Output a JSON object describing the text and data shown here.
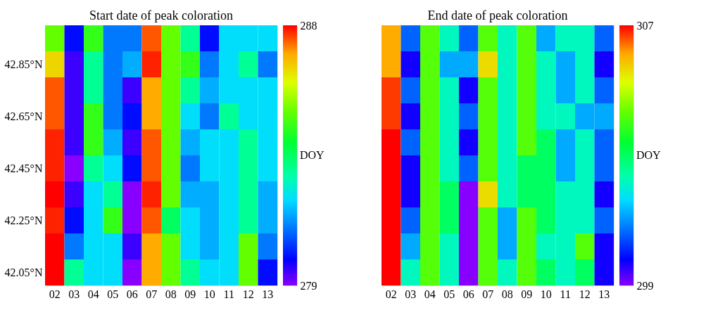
{
  "chart_data": [
    {
      "type": "heatmap",
      "title": "Start date of peak coloration",
      "clabel": "DOY",
      "categories": [
        "02",
        "03",
        "04",
        "05",
        "06",
        "07",
        "08",
        "09",
        "10",
        "11",
        "12",
        "13"
      ],
      "y_categories": [
        null,
        "42.85°N",
        null,
        "42.65°N",
        null,
        "42.45°N",
        null,
        "42.25°N",
        null,
        "42.05°N"
      ],
      "cells": [
        [
          285,
          280,
          284.5,
          281,
          281,
          287.5,
          285,
          283,
          280,
          282,
          282,
          282
        ],
        [
          286.5,
          279.5,
          283,
          281,
          281.5,
          287.8,
          285,
          284.5,
          281,
          282,
          283,
          281
        ],
        [
          287.5,
          279.5,
          283,
          281,
          279.5,
          287,
          285,
          283,
          281.5,
          282,
          282,
          282
        ],
        [
          287.5,
          279.5,
          284.5,
          281,
          280,
          287,
          285,
          282,
          281,
          283,
          282,
          282
        ],
        [
          287.8,
          279.5,
          284.5,
          281.5,
          279.5,
          287.5,
          285,
          281.5,
          282,
          282,
          283,
          282
        ],
        [
          287.8,
          279,
          283,
          282,
          280,
          287.5,
          285,
          281,
          282,
          282,
          283,
          282
        ],
        [
          288,
          279.5,
          282,
          283,
          279,
          287.8,
          285,
          281.5,
          281.5,
          282,
          283,
          281.5
        ],
        [
          287.8,
          280,
          282,
          284.5,
          279,
          287.5,
          283.5,
          282,
          281.5,
          282,
          283,
          281.5
        ],
        [
          288,
          281,
          282,
          282,
          279.5,
          287,
          285,
          282,
          281.5,
          282,
          285,
          281
        ],
        [
          288,
          283,
          282,
          282,
          279,
          287,
          285,
          283,
          282,
          282,
          285,
          280
        ]
      ],
      "clim": [
        279,
        288
      ],
      "cticks": [
        279,
        288
      ]
    },
    {
      "type": "heatmap",
      "title": "End date of peak coloration",
      "clabel": "DOY",
      "categories": [
        "02",
        "03",
        "04",
        "05",
        "06",
        "07",
        "08",
        "09",
        "10",
        "11",
        "12",
        "13"
      ],
      "y_categories": [
        null,
        null,
        null,
        null,
        null,
        null,
        null,
        null,
        null,
        null
      ],
      "cells": [
        [
          306.1,
          300.6,
          304.2,
          302.2,
          300.6,
          304.2,
          302.2,
          304.2,
          301.2,
          302.2,
          302.2,
          300.6
        ],
        [
          306.1,
          299.7,
          304.2,
          301.2,
          301.2,
          305.6,
          302.2,
          304.2,
          302.2,
          301.2,
          302.2,
          299.7
        ],
        [
          306.7,
          300.6,
          304.2,
          302.2,
          299.7,
          304.2,
          302.2,
          304.2,
          302.2,
          301.2,
          302.2,
          300.6
        ],
        [
          306.7,
          299.7,
          304.2,
          302.2,
          300.6,
          304.2,
          302.2,
          304.2,
          302.2,
          302.2,
          301.2,
          301.2
        ],
        [
          307,
          300.6,
          304.2,
          302.2,
          299.7,
          304.2,
          302.2,
          304.2,
          303,
          301.2,
          302.2,
          300.6
        ],
        [
          307,
          299.7,
          304.2,
          302.2,
          300.6,
          304.2,
          302.2,
          303,
          303,
          301.2,
          302.2,
          300.6
        ],
        [
          307,
          299.7,
          304.2,
          303,
          299,
          305.6,
          302.2,
          303,
          303,
          302.2,
          302.2,
          299.7
        ],
        [
          307,
          300.6,
          304.2,
          303,
          299,
          304.2,
          301.2,
          304.2,
          303,
          302.2,
          302.2,
          300.6
        ],
        [
          307,
          301.2,
          304.2,
          302.2,
          299,
          304.2,
          301.2,
          304.2,
          302.2,
          302.2,
          304.2,
          299.7
        ],
        [
          307,
          302.2,
          304.2,
          302.2,
          299,
          304.2,
          302.2,
          304.2,
          303,
          302.2,
          303,
          299.7
        ]
      ],
      "clim": [
        299,
        307
      ],
      "cticks": [
        299,
        307
      ]
    }
  ]
}
